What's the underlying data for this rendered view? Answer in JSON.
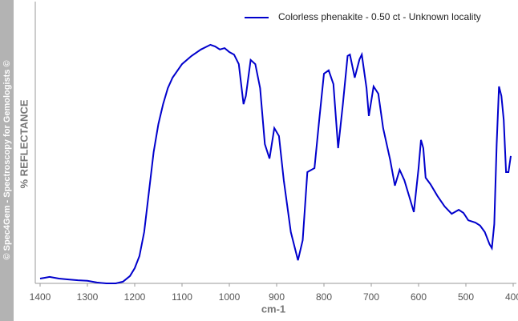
{
  "watermark": "© Spec4Gem - Spectroscopy for Gemologists ©",
  "chart_data": {
    "type": "line",
    "legend_position": "top-right",
    "x_label": "cm-1",
    "y_label": "% REFLECTANCE",
    "xlim": [
      1400,
      400
    ],
    "xticks": [
      1400,
      1300,
      1200,
      1100,
      1000,
      900,
      800,
      700,
      600,
      500,
      400
    ],
    "ylim": [
      0,
      100
    ],
    "x": [
      1400,
      1390,
      1380,
      1360,
      1340,
      1320,
      1300,
      1280,
      1260,
      1240,
      1225,
      1210,
      1200,
      1190,
      1180,
      1170,
      1160,
      1150,
      1140,
      1130,
      1120,
      1100,
      1080,
      1060,
      1040,
      1030,
      1020,
      1010,
      1000,
      990,
      980,
      970,
      965,
      955,
      945,
      935,
      925,
      915,
      905,
      895,
      885,
      870,
      855,
      845,
      835,
      820,
      810,
      800,
      790,
      780,
      770,
      760,
      750,
      745,
      735,
      725,
      720,
      710,
      705,
      695,
      685,
      675,
      660,
      650,
      640,
      630,
      620,
      610,
      600,
      595,
      590,
      585,
      575,
      560,
      545,
      530,
      515,
      505,
      495,
      480,
      470,
      460,
      450,
      445,
      440,
      435,
      430,
      425,
      420,
      415,
      410,
      405
    ],
    "series": [
      {
        "name": "Colorless phenakite - 0.50 ct - Unknown locality",
        "color": "#0000cc",
        "values": [
          1.7,
          2.0,
          2.3,
          1.7,
          1.4,
          1.1,
          0.9,
          0.3,
          0,
          0,
          0.6,
          2.6,
          5.4,
          9.7,
          18.2,
          32.4,
          46.6,
          56.5,
          63.6,
          69.3,
          73.0,
          77.8,
          80.7,
          83.0,
          84.7,
          84.1,
          83.0,
          83.5,
          82.1,
          81.2,
          77.8,
          63.6,
          66.5,
          79.3,
          77.8,
          69.3,
          49.4,
          44.3,
          55.1,
          52.3,
          36.6,
          18.2,
          8.2,
          15.3,
          39.5,
          40.9,
          58.0,
          74.4,
          75.6,
          70.7,
          48.0,
          63.6,
          80.7,
          81.2,
          73.0,
          79.5,
          81.2,
          69.3,
          59.4,
          69.9,
          67.3,
          55.1,
          43.8,
          34.7,
          40.3,
          36.6,
          31.0,
          25.3,
          40.9,
          50.9,
          48.0,
          37.5,
          35.2,
          31.0,
          27.3,
          24.7,
          26.1,
          25.0,
          22.4,
          21.6,
          20.5,
          18.2,
          13.9,
          12.5,
          21.0,
          49.4,
          69.9,
          66.5,
          58.0,
          39.5,
          39.5,
          45.2
        ]
      }
    ]
  }
}
